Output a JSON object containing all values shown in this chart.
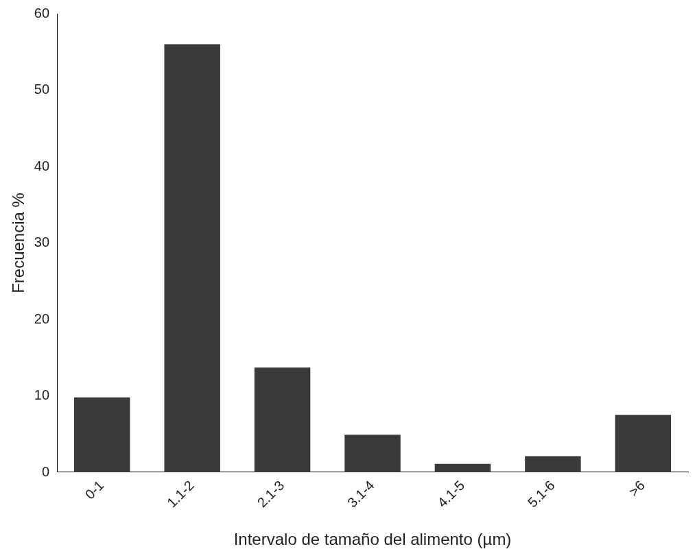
{
  "chart_data": {
    "type": "bar",
    "xlabel": "Intervalo de tamaño del alimento (µm)",
    "ylabel": "Frecuencia %",
    "categories": [
      "0-1",
      "1.1-2",
      "2.1-3",
      "3.1-4",
      "4.1-5",
      "5.1-6",
      ">6"
    ],
    "values": [
      9.8,
      56,
      13.7,
      4.9,
      1.1,
      2.1,
      7.5
    ],
    "color": "#3a3a3a",
    "ylim": [
      0,
      60
    ],
    "yticks": [
      0,
      10,
      20,
      30,
      40,
      50,
      60
    ],
    "grid": false,
    "legend": false
  }
}
